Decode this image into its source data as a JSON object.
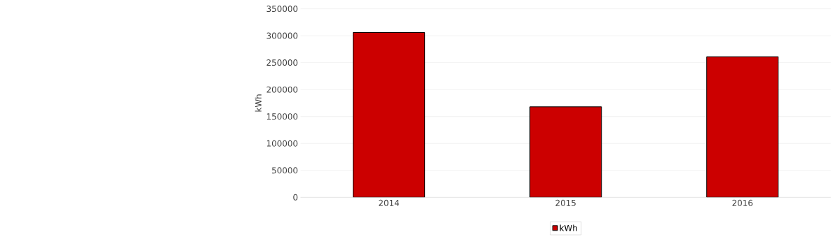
{
  "chart_data": {
    "type": "bar",
    "ylabel": "kWh",
    "categories": [
      "2014",
      "2015",
      "2016"
    ],
    "series": [
      {
        "name": "kWh",
        "color": "#cc0000",
        "values": [
          306000,
          168000,
          261000
        ]
      }
    ],
    "ylim": [
      0,
      350000
    ],
    "yticks": [
      0,
      50000,
      100000,
      150000,
      200000,
      250000,
      300000,
      350000
    ],
    "grid": "y",
    "legend": "bottom"
  }
}
